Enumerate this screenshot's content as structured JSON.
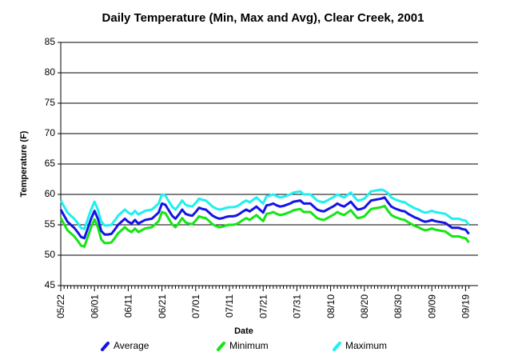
{
  "chart_data": {
    "type": "line",
    "title": "Daily Temperature (Min, Max and Avg), Clear Creek, 2001",
    "xlabel": "Date",
    "ylabel": "Temperature (F)",
    "categories": [
      "05/22",
      null,
      null,
      null,
      null,
      null,
      null,
      null,
      null,
      null,
      "06/01",
      null,
      null,
      null,
      null,
      null,
      null,
      null,
      null,
      null,
      "06/11",
      null,
      null,
      null,
      null,
      null,
      null,
      null,
      null,
      null,
      "06/21",
      null,
      null,
      null,
      null,
      null,
      null,
      null,
      null,
      null,
      "07/01",
      null,
      null,
      null,
      null,
      null,
      null,
      null,
      null,
      null,
      "07/11",
      null,
      null,
      null,
      null,
      null,
      null,
      null,
      null,
      null,
      "07/21",
      null,
      null,
      null,
      null,
      null,
      null,
      null,
      null,
      null,
      "07/31",
      null,
      null,
      null,
      null,
      null,
      null,
      null,
      null,
      null,
      "08/10",
      null,
      null,
      null,
      null,
      null,
      null,
      null,
      null,
      null,
      "08/20",
      null,
      null,
      null,
      null,
      null,
      null,
      null,
      null,
      null,
      "08/30",
      null,
      null,
      null,
      null,
      null,
      null,
      null,
      null,
      null,
      "09/09",
      null,
      null,
      null,
      null,
      null,
      null,
      null,
      null,
      null,
      "09/19",
      null
    ],
    "series": [
      {
        "name": "Average",
        "color": "#1414e6",
        "values": [
          57.5,
          56.5,
          55.5,
          55.0,
          54.5,
          53.8,
          53.0,
          52.8,
          54.4,
          56.0,
          57.3,
          56.0,
          54.0,
          53.4,
          53.4,
          53.5,
          54.2,
          55.0,
          55.5,
          56.0,
          55.5,
          55.2,
          55.8,
          55.2,
          55.5,
          55.8,
          55.9,
          56.0,
          56.5,
          57.0,
          58.5,
          58.3,
          57.4,
          56.5,
          56.0,
          56.7,
          57.5,
          56.8,
          56.6,
          56.5,
          57.1,
          57.8,
          57.6,
          57.5,
          57.0,
          56.5,
          56.2,
          56.0,
          56.1,
          56.3,
          56.4,
          56.4,
          56.5,
          56.8,
          57.2,
          57.5,
          57.2,
          57.6,
          58.0,
          57.5,
          57.0,
          58.2,
          58.3,
          58.5,
          58.2,
          58.0,
          58.1,
          58.3,
          58.5,
          58.8,
          58.9,
          59.0,
          58.5,
          58.5,
          58.5,
          58.0,
          57.5,
          57.3,
          57.2,
          57.5,
          57.8,
          58.1,
          58.5,
          58.2,
          58.0,
          58.4,
          58.8,
          58.1,
          57.5,
          57.6,
          57.8,
          58.4,
          59.0,
          59.1,
          59.2,
          59.3,
          59.5,
          58.7,
          58.0,
          57.7,
          57.5,
          57.3,
          57.2,
          56.8,
          56.5,
          56.2,
          56.0,
          55.7,
          55.5,
          55.6,
          55.8,
          55.6,
          55.5,
          55.4,
          55.3,
          54.9,
          54.5,
          54.5,
          54.5,
          54.3,
          54.2,
          53.5
        ]
      },
      {
        "name": "Minimum",
        "color": "#14e614",
        "values": [
          56.1,
          55.1,
          54.1,
          53.6,
          53.1,
          52.4,
          51.6,
          51.4,
          53.0,
          54.6,
          55.9,
          54.6,
          52.6,
          52.0,
          52.0,
          52.1,
          52.8,
          53.6,
          54.1,
          54.6,
          54.1,
          53.8,
          54.4,
          53.8,
          54.1,
          54.4,
          54.5,
          54.6,
          55.1,
          55.6,
          57.1,
          56.9,
          56.0,
          55.1,
          54.6,
          55.3,
          56.1,
          55.4,
          55.2,
          55.1,
          55.7,
          56.4,
          56.2,
          56.1,
          55.6,
          55.1,
          54.8,
          54.6,
          54.7,
          54.9,
          55.0,
          55.0,
          55.1,
          55.4,
          55.8,
          56.1,
          55.8,
          56.2,
          56.6,
          56.1,
          55.6,
          56.8,
          56.9,
          57.1,
          56.8,
          56.6,
          56.7,
          56.9,
          57.1,
          57.4,
          57.5,
          57.6,
          57.1,
          57.1,
          57.1,
          56.6,
          56.1,
          55.9,
          55.8,
          56.1,
          56.4,
          56.7,
          57.1,
          56.8,
          56.6,
          57.0,
          57.4,
          56.7,
          56.1,
          56.2,
          56.4,
          57.0,
          57.6,
          57.7,
          57.8,
          57.9,
          58.1,
          57.3,
          56.6,
          56.3,
          56.1,
          55.9,
          55.8,
          55.4,
          55.1,
          54.8,
          54.6,
          54.3,
          54.1,
          54.2,
          54.4,
          54.2,
          54.1,
          54.0,
          53.9,
          53.5,
          53.1,
          53.1,
          53.1,
          52.9,
          52.8,
          52.1
        ]
      },
      {
        "name": "Maximum",
        "color": "#1ef0f0",
        "values": [
          59.0,
          58.0,
          57.0,
          56.5,
          56.0,
          55.3,
          54.5,
          54.3,
          55.9,
          57.5,
          58.8,
          57.5,
          55.5,
          54.9,
          54.9,
          55.0,
          55.7,
          56.5,
          57.0,
          57.5,
          57.0,
          56.7,
          57.3,
          56.7,
          57.0,
          57.3,
          57.4,
          57.5,
          58.0,
          58.5,
          60.0,
          59.8,
          58.9,
          58.0,
          57.5,
          58.2,
          59.0,
          58.3,
          58.1,
          58.0,
          58.6,
          59.3,
          59.1,
          59.0,
          58.5,
          58.0,
          57.7,
          57.5,
          57.6,
          57.8,
          57.9,
          57.9,
          58.0,
          58.3,
          58.7,
          59.0,
          58.7,
          59.1,
          59.5,
          59.0,
          58.5,
          59.7,
          59.8,
          60.0,
          59.7,
          59.5,
          59.6,
          59.8,
          60.0,
          60.3,
          60.4,
          60.5,
          60.0,
          60.0,
          60.0,
          59.5,
          59.0,
          58.8,
          58.7,
          59.0,
          59.3,
          59.6,
          60.0,
          59.7,
          59.5,
          59.9,
          60.3,
          59.6,
          59.0,
          59.1,
          59.3,
          59.9,
          60.5,
          60.6,
          60.7,
          60.8,
          60.6,
          60.2,
          59.5,
          59.2,
          59.0,
          58.8,
          58.7,
          58.3,
          58.0,
          57.7,
          57.5,
          57.2,
          57.0,
          57.1,
          57.3,
          57.1,
          57.0,
          56.9,
          56.8,
          56.4,
          56.0,
          56.0,
          56.0,
          55.8,
          55.7,
          55.0
        ]
      }
    ],
    "ylim": [
      45,
      85
    ],
    "yticks": [
      45,
      50,
      55,
      60,
      65,
      70,
      75,
      80,
      85
    ],
    "grid": true,
    "legend": "bottom"
  }
}
